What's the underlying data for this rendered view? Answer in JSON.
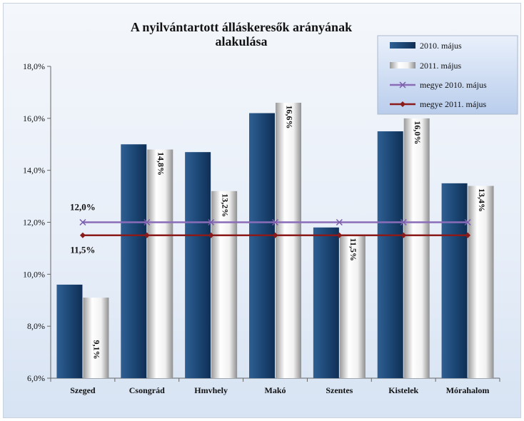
{
  "chart_data": {
    "type": "bar",
    "title": "A nyilvántartott álláskeresők arányának alakulása",
    "title_lines": [
      "A nyilvántartott álláskeresők arányának",
      "alakulása"
    ],
    "categories": [
      "Szeged",
      "Csongrád",
      "Hmvhely",
      "Makó",
      "Szentes",
      "Kistelek",
      "Mórahalom"
    ],
    "series": [
      {
        "name": "2010. május",
        "kind": "bar",
        "color": "#1f4e79",
        "values": [
          9.6,
          15.0,
          14.7,
          16.2,
          11.8,
          15.5,
          13.5
        ]
      },
      {
        "name": "2011. május",
        "kind": "bar",
        "color": "#e6e6e6",
        "values": [
          9.1,
          14.8,
          13.2,
          16.6,
          11.5,
          16.0,
          13.4
        ],
        "data_labels": [
          "9,1%",
          "14,8%",
          "13,2%",
          "16,6%",
          "11,5%",
          "16,0%",
          "13,4%"
        ]
      },
      {
        "name": "megye 2010. május",
        "kind": "line",
        "color": "#8a6cb8",
        "marker": "x",
        "values": [
          12.0,
          12.0,
          12.0,
          12.0,
          12.0,
          12.0,
          12.0
        ],
        "data_label": "12,0%"
      },
      {
        "name": "megye 2011. május",
        "kind": "line",
        "color": "#8b1a1a",
        "marker": "diamond",
        "values": [
          11.5,
          11.5,
          11.5,
          11.5,
          11.5,
          11.5,
          11.5
        ],
        "data_label": "11,5%"
      }
    ],
    "ylim": [
      6.0,
      18.0
    ],
    "y_ticks": [
      6.0,
      8.0,
      10.0,
      12.0,
      14.0,
      16.0,
      18.0
    ],
    "y_tick_labels": [
      "6,0%",
      "8,0%",
      "10,0%",
      "12,0%",
      "14,0%",
      "16,0%",
      "18,0%"
    ],
    "xlabel": "",
    "ylabel": "",
    "grid": false,
    "legend_position": "top-right"
  }
}
